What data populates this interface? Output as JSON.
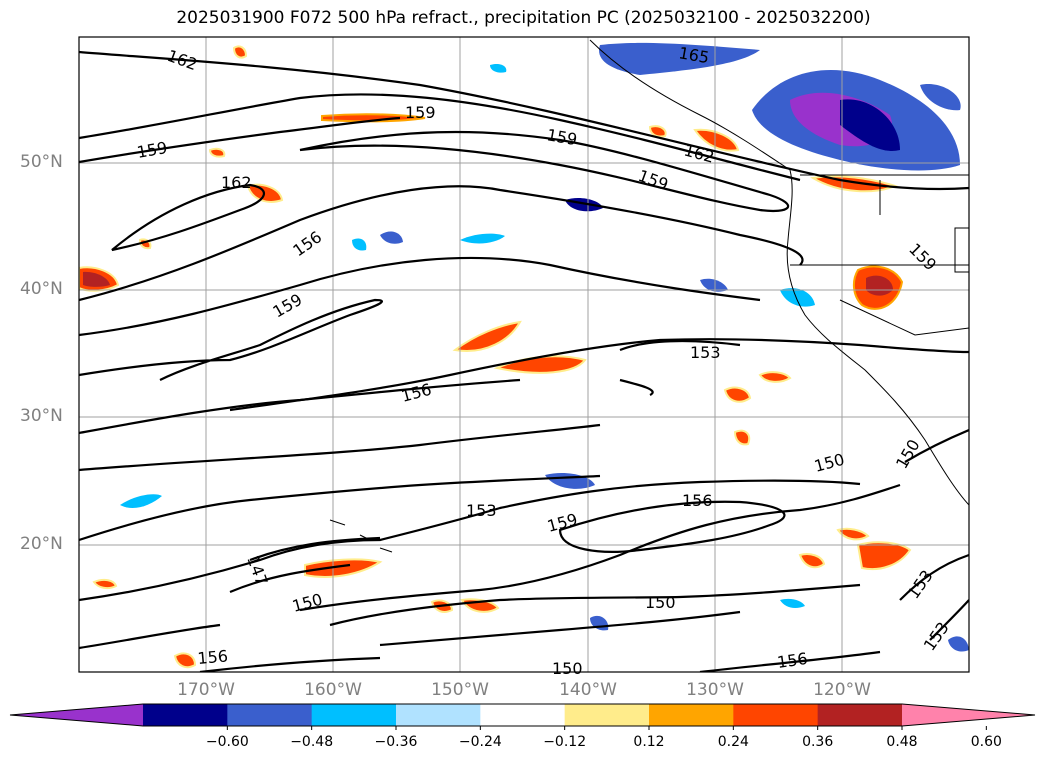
{
  "title": "2025031900 F072 500 hPa refract., precipitation PC (2025032100 - 2025032200)",
  "lat_labels": [
    "50°N",
    "40°N",
    "30°N",
    "20°N"
  ],
  "lon_labels": [
    "170°W",
    "160°W",
    "150°W",
    "140°W",
    "130°W",
    "120°W"
  ],
  "contour_labels": [
    "162",
    "165",
    "159",
    "159",
    "159",
    "162",
    "159",
    "162",
    "156",
    "159",
    "156",
    "153",
    "159",
    "150",
    "153",
    "156",
    "159",
    "156",
    "147",
    "150",
    "150",
    "153",
    "156",
    "150",
    "156",
    "153",
    "150"
  ],
  "colorbar": {
    "colors": [
      "#9932cc",
      "#00008b",
      "#3a5fcd",
      "#00bfff",
      "#b0e2ff",
      "#ffffff",
      "#ffec8b",
      "#ffa500",
      "#ff4500",
      "#b22222",
      "#ff82ab"
    ],
    "ticks": [
      "−0.60",
      "−0.48",
      "−0.36",
      "−0.24",
      "−0.12",
      "0.12",
      "0.24",
      "0.36",
      "0.48",
      "0.60"
    ]
  }
}
